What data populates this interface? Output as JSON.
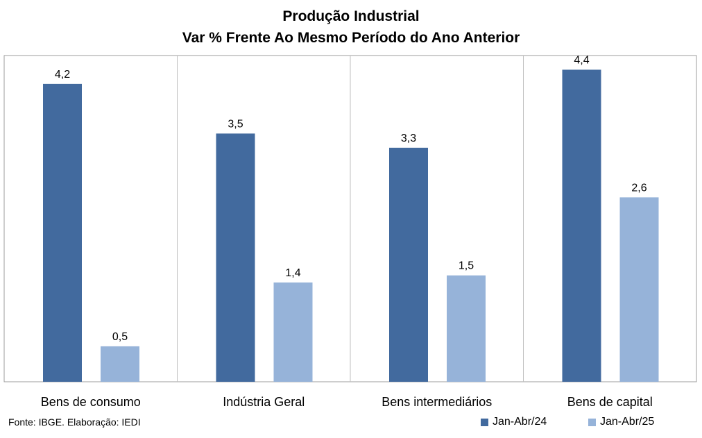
{
  "chart_data": {
    "type": "bar",
    "title": "Produção Industrial",
    "subtitle": "Var % Frente Ao Mesmo Período do Ano Anterior",
    "categories": [
      "Bens de consumo",
      "Indústria Geral",
      "Bens intermediários",
      "Bens de capital"
    ],
    "series": [
      {
        "name": "Jan-Abr/24",
        "values": [
          4.2,
          3.5,
          3.3,
          4.4
        ],
        "labels": [
          "4,2",
          "3,5",
          "3,3",
          "4,4"
        ],
        "color": "#426A9E"
      },
      {
        "name": "Jan-Abr/25",
        "values": [
          0.5,
          1.4,
          1.5,
          2.6
        ],
        "labels": [
          "0,5",
          "1,4",
          "1,5",
          "2,6"
        ],
        "color": "#96B3D9"
      }
    ],
    "ylim": [
      0,
      4.6
    ],
    "grid": false,
    "legend": "bottom-right"
  },
  "source": "Fonte: IBGE. Elaboração: IEDI",
  "colors": {
    "divider": "#BFBFBF",
    "frame": "#9E9E9E"
  }
}
